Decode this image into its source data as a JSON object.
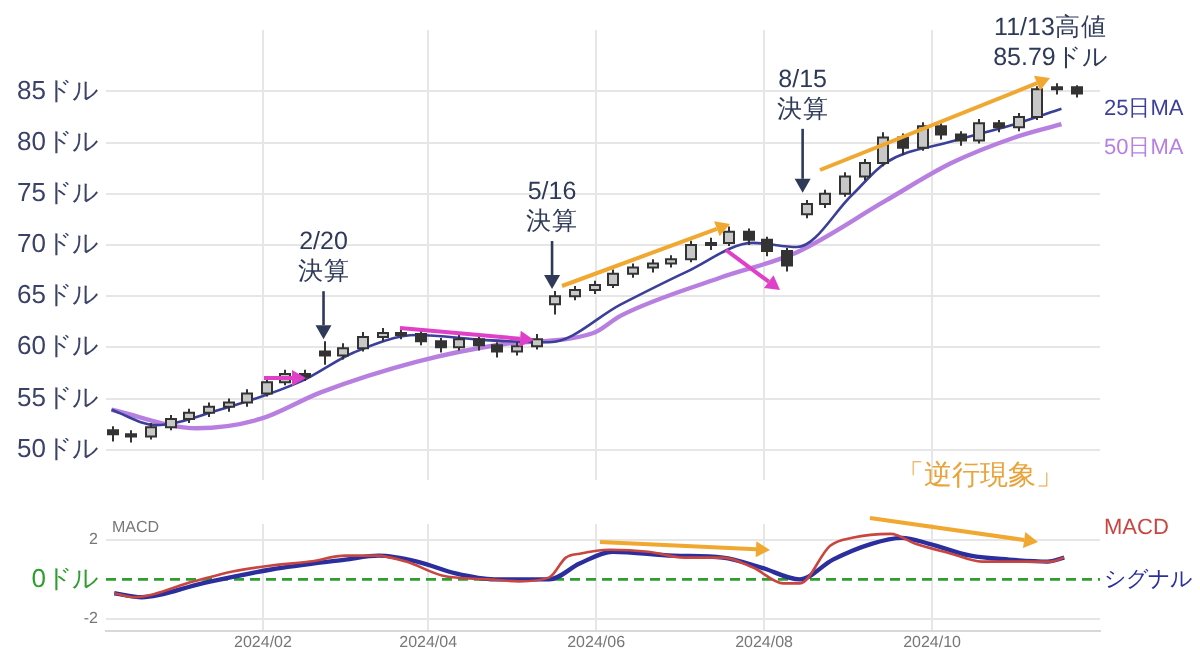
{
  "chart_data": [
    {
      "type": "candlestick",
      "color": "#333333",
      "colors": [
        "#333333",
        "#333333",
        "#c8c8c8",
        "#c8c8c8",
        "#c8c8c8",
        "#c8c8c8",
        "#c8c8c8",
        "#c8c8c8",
        "#c8c8c8",
        "#c8c8c8",
        "#333333",
        "#333333",
        "#c8c8c8",
        "#c8c8c8",
        "#c8c8c8",
        "#333333",
        "#333333",
        "#333333",
        "#c8c8c8",
        "#333333",
        "#333333",
        "#c8c8c8",
        "#c8c8c8",
        "#c8c8c8",
        "#c8c8c8",
        "#c8c8c8",
        "#c8c8c8",
        "#c8c8c8",
        "#c8c8c8",
        "#c8c8c8",
        "#c8c8c8",
        "#c8c8c8",
        "#c8c8c8",
        "#333333",
        "#333333",
        "#333333",
        "#c8c8c8",
        "#c8c8c8",
        "#c8c8c8",
        "#c8c8c8",
        "#c8c8c8",
        "#333333",
        "#c8c8c8",
        "#333333",
        "#333333",
        "#c8c8c8",
        "#333333",
        "#c8c8c8",
        "#c8c8c8",
        "#c8c8c8",
        "#333333"
      ],
      "x": [
        "2023-12-08",
        "2023-12-15",
        "2023-12-22",
        "2023-12-29",
        "2024-01-05",
        "2024-01-12",
        "2024-01-19",
        "2024-01-26",
        "2024-02-02",
        "2024-02-09",
        "2024-02-16",
        "2024-02-23",
        "2024-03-01",
        "2024-03-08",
        "2024-03-15",
        "2024-03-22",
        "2024-03-29",
        "2024-04-05",
        "2024-04-12",
        "2024-04-19",
        "2024-04-26",
        "2024-05-03",
        "2024-05-10",
        "2024-05-17",
        "2024-05-24",
        "2024-05-31",
        "2024-06-07",
        "2024-06-14",
        "2024-06-21",
        "2024-06-28",
        "2024-07-05",
        "2024-07-12",
        "2024-07-19",
        "2024-07-26",
        "2024-08-02",
        "2024-08-09",
        "2024-08-16",
        "2024-08-23",
        "2024-08-30",
        "2024-09-06",
        "2024-09-13",
        "2024-09-20",
        "2024-09-27",
        "2024-10-04",
        "2024-10-11",
        "2024-10-18",
        "2024-10-25",
        "2024-11-01",
        "2024-11-08",
        "2024-11-15",
        "2024-11-22"
      ],
      "ohlc": [
        [
          51.9,
          52.3,
          50.8,
          51.5
        ],
        [
          51.5,
          51.9,
          50.7,
          51.3
        ],
        [
          51.3,
          52.6,
          51.0,
          52.2
        ],
        [
          52.2,
          53.4,
          51.9,
          53.0
        ],
        [
          53.0,
          54.0,
          52.6,
          53.6
        ],
        [
          53.6,
          54.6,
          53.2,
          54.2
        ],
        [
          54.2,
          55.0,
          53.7,
          54.6
        ],
        [
          54.6,
          55.9,
          54.2,
          55.5
        ],
        [
          55.5,
          57.0,
          55.2,
          56.6
        ],
        [
          56.6,
          57.8,
          56.3,
          57.4
        ],
        [
          57.4,
          57.8,
          56.7,
          57.1
        ],
        [
          59.6,
          60.6,
          58.3,
          59.2
        ],
        [
          59.2,
          60.4,
          58.8,
          59.9
        ],
        [
          59.9,
          61.5,
          59.6,
          61.0
        ],
        [
          61.0,
          61.9,
          60.6,
          61.4
        ],
        [
          61.4,
          61.8,
          60.8,
          61.3
        ],
        [
          61.3,
          61.6,
          60.2,
          60.6
        ],
        [
          60.6,
          60.9,
          59.5,
          60.0
        ],
        [
          60.0,
          61.2,
          59.7,
          60.8
        ],
        [
          60.8,
          61.1,
          59.7,
          60.2
        ],
        [
          60.2,
          60.5,
          59.0,
          59.6
        ],
        [
          59.6,
          60.5,
          59.2,
          60.1
        ],
        [
          60.1,
          61.3,
          59.8,
          60.8
        ],
        [
          64.2,
          65.5,
          63.2,
          65.0
        ],
        [
          65.0,
          66.0,
          64.6,
          65.6
        ],
        [
          65.6,
          66.5,
          65.2,
          66.1
        ],
        [
          66.1,
          67.6,
          65.8,
          67.2
        ],
        [
          67.2,
          68.2,
          66.8,
          67.8
        ],
        [
          67.8,
          68.6,
          67.3,
          68.2
        ],
        [
          68.2,
          69.0,
          67.8,
          68.6
        ],
        [
          68.6,
          70.4,
          68.3,
          70.0
        ],
        [
          70.0,
          70.7,
          69.5,
          70.2
        ],
        [
          70.2,
          71.8,
          69.9,
          71.3
        ],
        [
          71.3,
          71.6,
          70.0,
          70.5
        ],
        [
          70.5,
          70.8,
          68.9,
          69.4
        ],
        [
          69.4,
          69.7,
          67.4,
          68.0
        ],
        [
          73.0,
          74.4,
          72.6,
          74.0
        ],
        [
          74.0,
          75.4,
          73.6,
          75.0
        ],
        [
          75.0,
          77.1,
          74.7,
          76.7
        ],
        [
          76.7,
          78.4,
          76.3,
          78.0
        ],
        [
          78.0,
          81.0,
          77.7,
          80.5
        ],
        [
          80.5,
          80.9,
          78.8,
          79.5
        ],
        [
          79.5,
          82.0,
          79.2,
          81.6
        ],
        [
          81.6,
          81.9,
          80.3,
          80.8
        ],
        [
          80.8,
          81.1,
          79.7,
          80.2
        ],
        [
          80.2,
          82.3,
          79.9,
          81.9
        ],
        [
          81.9,
          82.2,
          81.0,
          81.5
        ],
        [
          81.5,
          82.9,
          81.1,
          82.5
        ],
        [
          82.5,
          85.5,
          82.2,
          85.2
        ],
        [
          85.2,
          85.79,
          84.7,
          85.4
        ],
        [
          85.4,
          85.6,
          84.4,
          84.8
        ]
      ],
      "series": [
        {
          "name": "25日MA",
          "type": "line",
          "color": "#3b3f9a",
          "x": [
            "2023-12-08",
            "2023-12-24",
            "2024-01-15",
            "2024-02-15",
            "2024-03-05",
            "2024-03-28",
            "2024-04-22",
            "2024-05-15",
            "2024-06-10",
            "2024-07-04",
            "2024-07-28",
            "2024-08-13",
            "2024-09-02",
            "2024-09-14",
            "2024-10-08",
            "2024-10-31",
            "2024-11-17"
          ],
          "values": [
            53.9,
            52.4,
            53.8,
            56.7,
            59.5,
            61.2,
            60.7,
            60.5,
            64.2,
            67.4,
            70.2,
            69.8,
            74.9,
            78.0,
            80.1,
            81.8,
            83.3
          ]
        },
        {
          "name": "50日MA",
          "type": "line",
          "color": "#b77fe0",
          "x": [
            "2023-12-08",
            "2024-01-08",
            "2024-01-31",
            "2024-02-22",
            "2024-03-28",
            "2024-04-28",
            "2024-05-31",
            "2024-06-10",
            "2024-07-16",
            "2024-08-13",
            "2024-09-14",
            "2024-10-08",
            "2024-10-31",
            "2024-11-17"
          ],
          "values": [
            53.9,
            52.1,
            53.0,
            55.6,
            58.6,
            60.3,
            61.4,
            63.1,
            66.8,
            69.3,
            74.3,
            78.0,
            80.5,
            81.8
          ]
        }
      ],
      "xlim": [
        "2023-12-06",
        "2024-12-01"
      ],
      "xticks": [
        {
          "value": "2024-02-01",
          "label": null
        },
        {
          "value": "2024-04-01",
          "label": null
        },
        {
          "value": "2024-06-01",
          "label": null
        },
        {
          "value": "2024-08-01",
          "label": null
        },
        {
          "value": "2024-10-01",
          "label": null
        }
      ],
      "ylim": [
        47,
        91
      ],
      "yticks": [
        {
          "value": 50,
          "label": "50ドル"
        },
        {
          "value": 55,
          "label": "55ドル"
        },
        {
          "value": 60,
          "label": "60ドル"
        },
        {
          "value": 65,
          "label": "65ドル"
        },
        {
          "value": 70,
          "label": "70ドル"
        },
        {
          "value": 75,
          "label": "75ドル"
        },
        {
          "value": 80,
          "label": "80ドル"
        },
        {
          "value": 85,
          "label": "85ドル"
        }
      ],
      "tick_labels": "y",
      "grid": true,
      "annotations": [
        {
          "text": "2/20\n決算",
          "x": "2024-02-23",
          "y": 60.6
        },
        {
          "text": "5/16\n決算",
          "x": "2024-05-16",
          "y": 65.5
        },
        {
          "text": "8/15\n決算",
          "x": "2024-08-15",
          "y": 74.9
        },
        {
          "text": "11/13高値\n85.79ドル",
          "x": "2024-11-13",
          "y": 85.79
        },
        "「逆行現象」"
      ]
    },
    {
      "type": "line",
      "ylabel": "MACD",
      "series": [
        {
          "name": "MACD",
          "color": "#c8463f",
          "x": [
            "2023-12-09",
            "2023-12-16",
            "2024-01-07",
            "2024-01-21",
            "2024-02-04",
            "2024-02-18",
            "2024-03-02",
            "2024-03-13",
            "2024-03-24",
            "2024-04-06",
            "2024-04-23",
            "2024-05-04",
            "2024-05-15",
            "2024-05-21",
            "2024-05-26",
            "2024-06-06",
            "2024-06-20",
            "2024-07-03",
            "2024-07-17",
            "2024-07-28",
            "2024-08-08",
            "2024-08-14",
            "2024-08-25",
            "2024-09-02",
            "2024-09-16",
            "2024-09-25",
            "2024-10-08",
            "2024-10-19",
            "2024-11-02",
            "2024-11-13",
            "2024-11-18"
          ],
          "values": [
            -0.7,
            -0.9,
            -0.1,
            0.4,
            0.7,
            0.9,
            1.2,
            1.2,
            0.9,
            0.2,
            0,
            -0.1,
            0.1,
            1.1,
            1.3,
            1.5,
            1.4,
            1.1,
            1.1,
            0.6,
            -0.2,
            -0.2,
            1.7,
            2.1,
            2.3,
            1.8,
            1.3,
            0.9,
            0.9,
            0.9,
            1.1
          ]
        },
        {
          "name": "シグナル",
          "color": "#2b2f9e",
          "x": [
            "2023-12-09",
            "2023-12-19",
            "2024-01-10",
            "2024-02-04",
            "2024-03-02",
            "2024-03-14",
            "2024-03-28",
            "2024-04-11",
            "2024-04-25",
            "2024-05-15",
            "2024-05-26",
            "2024-06-07",
            "2024-06-29",
            "2024-07-17",
            "2024-07-31",
            "2024-08-14",
            "2024-08-26",
            "2024-09-09",
            "2024-09-20",
            "2024-09-30",
            "2024-10-15",
            "2024-10-29",
            "2024-11-12",
            "2024-11-18"
          ],
          "values": [
            -0.7,
            -0.9,
            -0.2,
            0.5,
            1.0,
            1.2,
            0.9,
            0.3,
            0,
            0,
            0.8,
            1.4,
            1.2,
            1.1,
            0.6,
            0,
            1.0,
            1.8,
            2.1,
            1.8,
            1.2,
            1.0,
            0.9,
            1.1
          ]
        }
      ],
      "xlim": [
        "2023-12-06",
        "2024-12-01"
      ],
      "xticks": [
        {
          "value": "2024-02-01",
          "label": "2024/02"
        },
        {
          "value": "2024-04-01",
          "label": "2024/04"
        },
        {
          "value": "2024-06-01",
          "label": "2024/06"
        },
        {
          "value": "2024-08-01",
          "label": "2024/08"
        },
        {
          "value": "2024-10-01",
          "label": "2024/10"
        }
      ],
      "ylim": [
        -2.6,
        2.8
      ],
      "yticks": [
        -2,
        2
      ],
      "grid": true,
      "ref_lines": [
        {
          "axis": "y",
          "value": 0,
          "label": "0ドル",
          "color": "#2e9e2e",
          "line_style": "dashed"
        }
      ]
    }
  ]
}
